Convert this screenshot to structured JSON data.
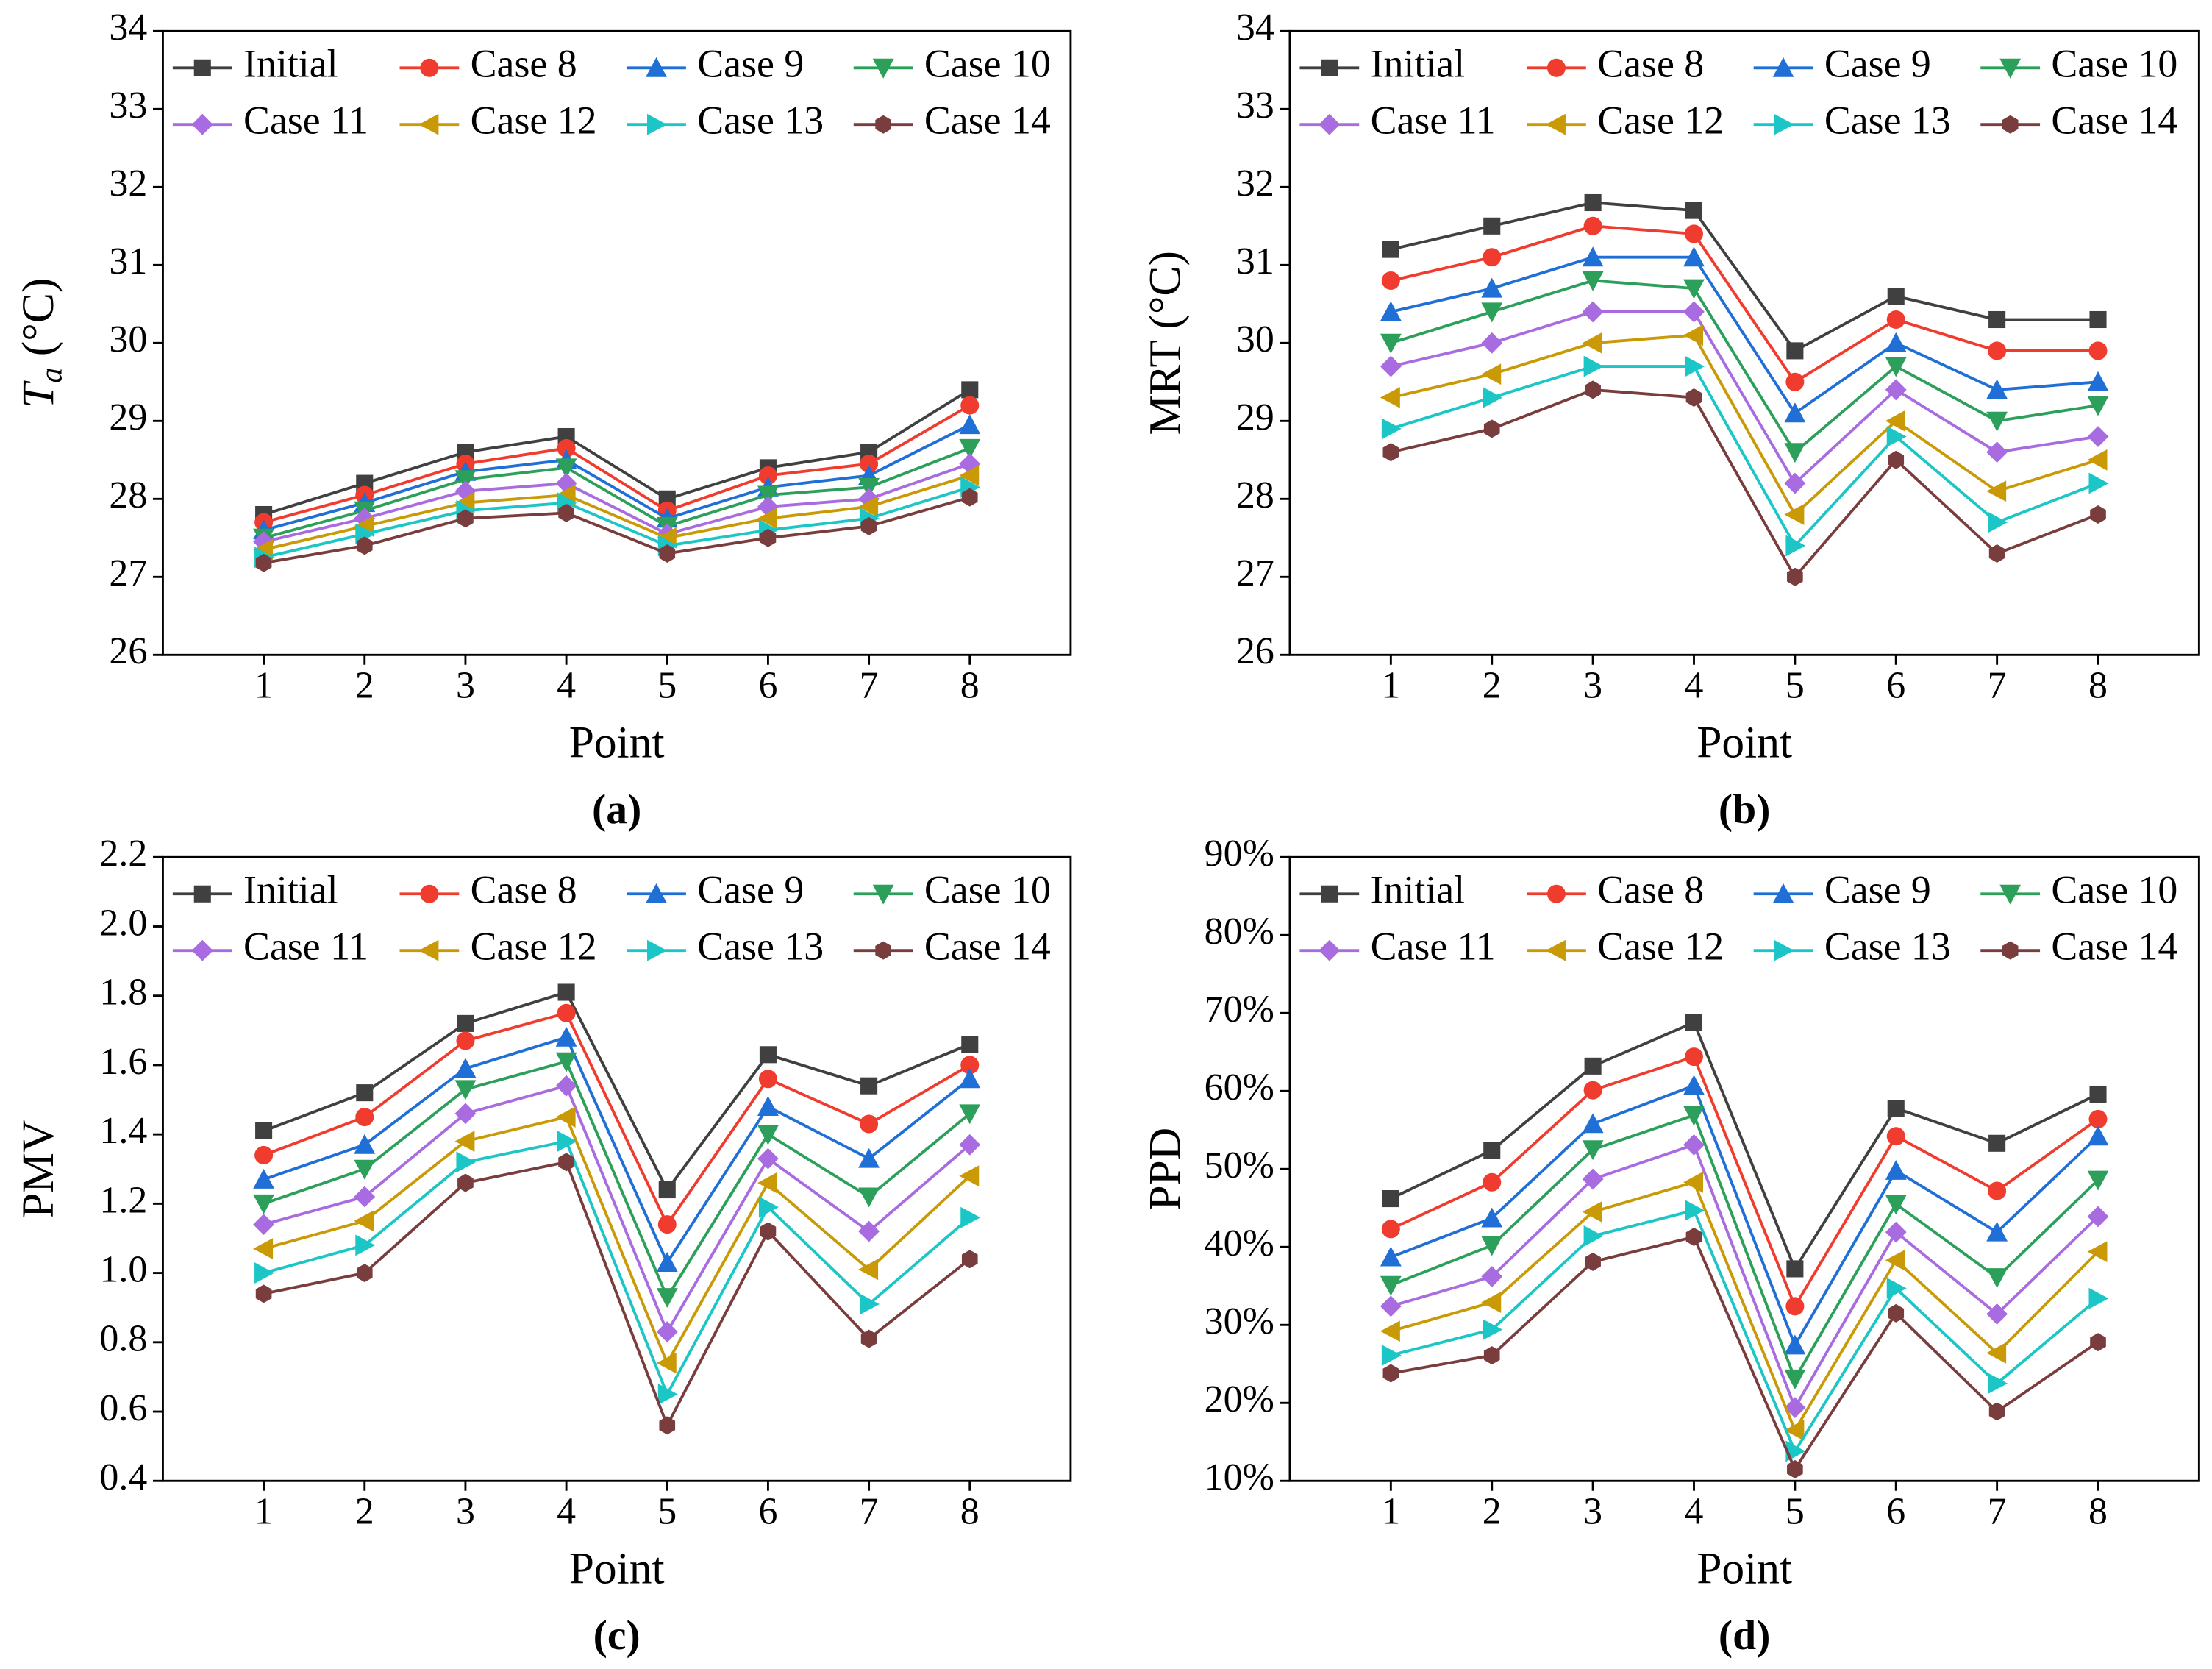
{
  "chart_data": [
    {
      "type": "line",
      "caption": "(a)",
      "x_label": "Point",
      "y_label": {
        "symbol": "T",
        "subscript": "a",
        "unit": " (°C)"
      },
      "categories": [
        "1",
        "2",
        "3",
        "4",
        "5",
        "6",
        "7",
        "8"
      ],
      "ylim": [
        26,
        34
      ],
      "yticks": [
        26,
        27,
        28,
        29,
        30,
        31,
        32,
        33,
        34
      ],
      "series": [
        {
          "name": "Initial",
          "color": "#404040",
          "marker": "square",
          "values": [
            27.8,
            28.2,
            28.6,
            28.8,
            28.0,
            28.4,
            28.6,
            29.4
          ]
        },
        {
          "name": "Case 8",
          "color": "#f03c2e",
          "marker": "circle",
          "values": [
            27.7,
            28.05,
            28.45,
            28.65,
            27.85,
            28.3,
            28.45,
            29.2
          ]
        },
        {
          "name": "Case 9",
          "color": "#1f6fd6",
          "marker": "triangle-up",
          "values": [
            27.6,
            27.95,
            28.35,
            28.5,
            27.75,
            28.15,
            28.3,
            28.95
          ]
        },
        {
          "name": "Case 10",
          "color": "#2ca05a",
          "marker": "triangle-down",
          "values": [
            27.5,
            27.85,
            28.25,
            28.4,
            27.65,
            28.05,
            28.15,
            28.65
          ]
        },
        {
          "name": "Case 11",
          "color": "#a86be0",
          "marker": "diamond",
          "values": [
            27.45,
            27.75,
            28.1,
            28.2,
            27.55,
            27.9,
            28.0,
            28.45
          ]
        },
        {
          "name": "Case 12",
          "color": "#c99a06",
          "marker": "triangle-left",
          "values": [
            27.35,
            27.65,
            27.95,
            28.05,
            27.5,
            27.75,
            27.9,
            28.3
          ]
        },
        {
          "name": "Case 13",
          "color": "#1cc6c6",
          "marker": "triangle-right",
          "values": [
            27.25,
            27.55,
            27.85,
            27.95,
            27.4,
            27.6,
            27.75,
            28.15
          ]
        },
        {
          "name": "Case 14",
          "color": "#7a3d3d",
          "marker": "hexagon",
          "values": [
            27.18,
            27.4,
            27.75,
            27.82,
            27.3,
            27.5,
            27.65,
            28.02
          ]
        }
      ]
    },
    {
      "type": "line",
      "caption": "(b)",
      "x_label": "Point",
      "y_label": "MRT (°C)",
      "categories": [
        "1",
        "2",
        "3",
        "4",
        "5",
        "6",
        "7",
        "8"
      ],
      "ylim": [
        26,
        34
      ],
      "yticks": [
        26,
        27,
        28,
        29,
        30,
        31,
        32,
        33,
        34
      ],
      "series": [
        {
          "name": "Initial",
          "color": "#404040",
          "marker": "square",
          "values": [
            31.2,
            31.5,
            31.8,
            31.7,
            29.9,
            30.6,
            30.3,
            30.3
          ]
        },
        {
          "name": "Case 8",
          "color": "#f03c2e",
          "marker": "circle",
          "values": [
            30.8,
            31.1,
            31.5,
            31.4,
            29.5,
            30.3,
            29.9,
            29.9
          ]
        },
        {
          "name": "Case 9",
          "color": "#1f6fd6",
          "marker": "triangle-up",
          "values": [
            30.4,
            30.7,
            31.1,
            31.1,
            29.1,
            30.0,
            29.4,
            29.5
          ]
        },
        {
          "name": "Case 10",
          "color": "#2ca05a",
          "marker": "triangle-down",
          "values": [
            30.0,
            30.4,
            30.8,
            30.7,
            28.6,
            29.7,
            29.0,
            29.2
          ]
        },
        {
          "name": "Case 11",
          "color": "#a86be0",
          "marker": "diamond",
          "values": [
            29.7,
            30.0,
            30.4,
            30.4,
            28.2,
            29.4,
            28.6,
            28.8
          ]
        },
        {
          "name": "Case 12",
          "color": "#c99a06",
          "marker": "triangle-left",
          "values": [
            29.3,
            29.6,
            30.0,
            30.1,
            27.8,
            29.0,
            28.1,
            28.5
          ]
        },
        {
          "name": "Case 13",
          "color": "#1cc6c6",
          "marker": "triangle-right",
          "values": [
            28.9,
            29.3,
            29.7,
            29.7,
            27.4,
            28.8,
            27.7,
            28.2
          ]
        },
        {
          "name": "Case 14",
          "color": "#7a3d3d",
          "marker": "hexagon",
          "values": [
            28.6,
            28.9,
            29.4,
            29.3,
            27.0,
            28.5,
            27.3,
            27.8
          ]
        }
      ]
    },
    {
      "type": "line",
      "caption": "(c)",
      "x_label": "Point",
      "y_label": "PMV",
      "categories": [
        "1",
        "2",
        "3",
        "4",
        "5",
        "6",
        "7",
        "8"
      ],
      "ylim": [
        0.4,
        2.2
      ],
      "yticks": [
        {
          "value": 0.4,
          "label": "0.4"
        },
        {
          "value": 0.6,
          "label": "0.6"
        },
        {
          "value": 0.8,
          "label": "0.8"
        },
        {
          "value": 1,
          "label": "1.0"
        },
        {
          "value": 1.2,
          "label": "1.2"
        },
        {
          "value": 1.4,
          "label": "1.4"
        },
        {
          "value": 1.6,
          "label": "1.6"
        },
        {
          "value": 1.8,
          "label": "1.8"
        },
        {
          "value": 2,
          "label": "2.0"
        },
        {
          "value": 2.2,
          "label": "2.2"
        }
      ],
      "series": [
        {
          "name": "Initial",
          "color": "#404040",
          "marker": "square",
          "values": [
            1.41,
            1.52,
            1.72,
            1.81,
            1.24,
            1.63,
            1.54,
            1.66
          ]
        },
        {
          "name": "Case 8",
          "color": "#f03c2e",
          "marker": "circle",
          "values": [
            1.34,
            1.45,
            1.67,
            1.75,
            1.14,
            1.56,
            1.43,
            1.6
          ]
        },
        {
          "name": "Case 9",
          "color": "#1f6fd6",
          "marker": "triangle-up",
          "values": [
            1.27,
            1.37,
            1.59,
            1.68,
            1.03,
            1.48,
            1.33,
            1.56
          ]
        },
        {
          "name": "Case 10",
          "color": "#2ca05a",
          "marker": "triangle-down",
          "values": [
            1.2,
            1.3,
            1.53,
            1.61,
            0.93,
            1.4,
            1.22,
            1.46
          ]
        },
        {
          "name": "Case 11",
          "color": "#a86be0",
          "marker": "diamond",
          "values": [
            1.14,
            1.22,
            1.46,
            1.54,
            0.83,
            1.33,
            1.12,
            1.37
          ]
        },
        {
          "name": "Case 12",
          "color": "#c99a06",
          "marker": "triangle-left",
          "values": [
            1.07,
            1.15,
            1.38,
            1.45,
            0.74,
            1.26,
            1.01,
            1.28
          ]
        },
        {
          "name": "Case 13",
          "color": "#1cc6c6",
          "marker": "triangle-right",
          "values": [
            1.0,
            1.08,
            1.32,
            1.38,
            0.65,
            1.19,
            0.91,
            1.16
          ]
        },
        {
          "name": "Case 14",
          "color": "#7a3d3d",
          "marker": "hexagon",
          "values": [
            0.94,
            1.0,
            1.26,
            1.32,
            0.56,
            1.12,
            0.81,
            1.04
          ]
        }
      ]
    },
    {
      "type": "line",
      "caption": "(d)",
      "x_label": "Point",
      "y_label": "PPD",
      "categories": [
        "1",
        "2",
        "3",
        "4",
        "5",
        "6",
        "7",
        "8"
      ],
      "ylim": [
        10,
        90
      ],
      "yticks": [
        {
          "value": 10,
          "label": "10%"
        },
        {
          "value": 20,
          "label": "20%"
        },
        {
          "value": 30,
          "label": "30%"
        },
        {
          "value": 40,
          "label": "40%"
        },
        {
          "value": 50,
          "label": "50%"
        },
        {
          "value": 60,
          "label": "60%"
        },
        {
          "value": 70,
          "label": "70%"
        },
        {
          "value": 80,
          "label": "80%"
        },
        {
          "value": 90,
          "label": "90%"
        }
      ],
      "series": [
        {
          "name": "Initial",
          "color": "#404040",
          "marker": "square",
          "values": [
            46.2,
            52.4,
            63.2,
            68.8,
            37.2,
            57.8,
            53.3,
            59.6
          ]
        },
        {
          "name": "Case 8",
          "color": "#f03c2e",
          "marker": "circle",
          "values": [
            42.3,
            48.3,
            60.1,
            64.4,
            32.4,
            54.2,
            47.2,
            56.4
          ]
        },
        {
          "name": "Case 9",
          "color": "#1f6fd6",
          "marker": "triangle-up",
          "values": [
            38.7,
            43.7,
            55.8,
            60.7,
            27.4,
            49.8,
            41.9,
            54.2
          ]
        },
        {
          "name": "Case 10",
          "color": "#2ca05a",
          "marker": "triangle-down",
          "values": [
            35.1,
            40.2,
            52.5,
            56.9,
            23.1,
            45.5,
            36.1,
            48.6
          ]
        },
        {
          "name": "Case 11",
          "color": "#a86be0",
          "marker": "diamond",
          "values": [
            32.4,
            36.2,
            48.7,
            53.1,
            19.4,
            41.9,
            31.4,
            43.9
          ]
        },
        {
          "name": "Case 12",
          "color": "#c99a06",
          "marker": "triangle-left",
          "values": [
            29.2,
            32.9,
            44.5,
            48.3,
            16.5,
            38.3,
            26.4,
            39.4
          ]
        },
        {
          "name": "Case 13",
          "color": "#1cc6c6",
          "marker": "triangle-right",
          "values": [
            26.1,
            29.4,
            41.4,
            44.7,
            13.8,
            34.7,
            22.5,
            33.4
          ]
        },
        {
          "name": "Case 14",
          "color": "#7a3d3d",
          "marker": "hexagon",
          "values": [
            23.8,
            26.1,
            38.1,
            41.3,
            11.5,
            31.5,
            18.9,
            27.8
          ]
        }
      ]
    }
  ]
}
